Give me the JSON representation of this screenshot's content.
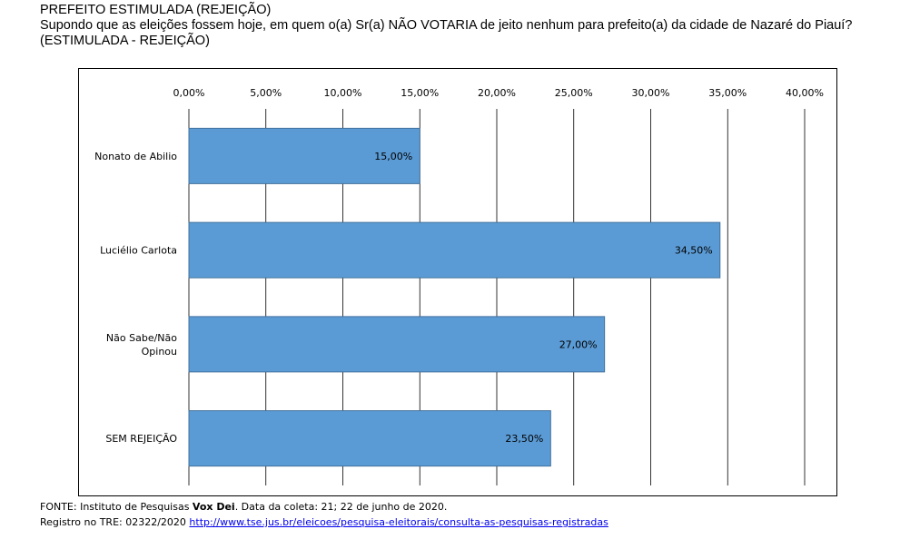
{
  "header": {
    "line1": "PREFEITO ESTIMULADA (REJEIÇÃO)",
    "line2": "Supondo que as eleições fossem hoje, em quem o(a) Sr(a) NÃO VOTARIA de jeito nenhum para prefeito(a) da cidade de Nazaré do Piauí?",
    "line3": "(ESTIMULADA - REJEIÇÃO)"
  },
  "footer": {
    "source_prefix": "FONTE: Instituto de Pesquisas ",
    "source_bold": "Vox Dei",
    "source_suffix": ". Data da coleta: 21; 22 de junho de 2020.",
    "registry_label": "Registro no TRE: 02322/2020 ",
    "registry_link": "http://www.tse.jus.br/eleicoes/pesquisa-eleitorais/consulta-as-pesquisas-registradas"
  },
  "chart_data": {
    "type": "bar",
    "orientation": "horizontal",
    "categories": [
      "Nonato de Abilio",
      "Luciélio Carlota",
      "Não Sabe/Não Opinou",
      "SEM REJEIÇÃO"
    ],
    "values": [
      15.0,
      34.5,
      27.0,
      23.5
    ],
    "value_labels": [
      "15,00%",
      "34,50%",
      "27,00%",
      "23,50%"
    ],
    "ticks": [
      0,
      5,
      10,
      15,
      20,
      25,
      30,
      35,
      40
    ],
    "tick_labels": [
      "0,00%",
      "5,00%",
      "10,00%",
      "15,00%",
      "20,00%",
      "25,00%",
      "30,00%",
      "35,00%",
      "40,00%"
    ],
    "xlim": [
      0,
      40
    ],
    "x_axis_position": "top",
    "grid": true,
    "bar_color": "#5b9bd5",
    "bar_border": "#41719c"
  }
}
